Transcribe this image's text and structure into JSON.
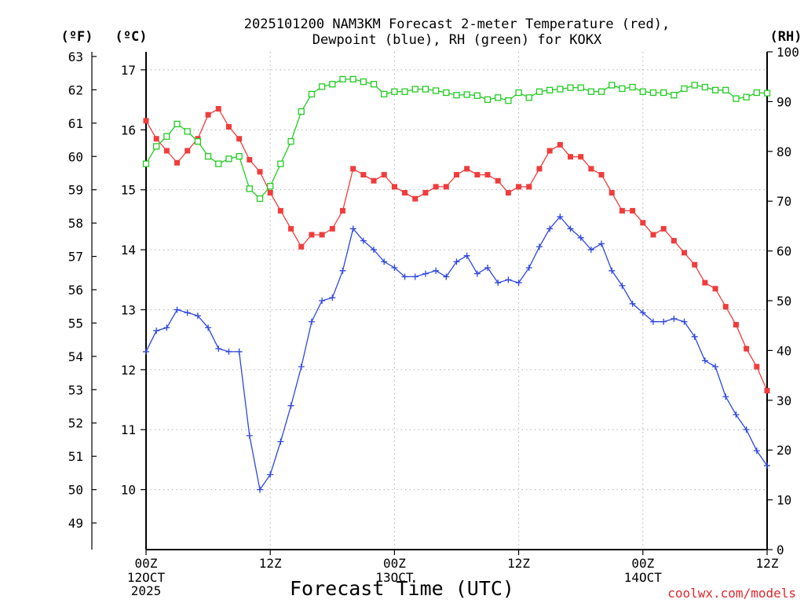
{
  "chart_data": {
    "type": "line",
    "title_lines": [
      "2025101200 NAM3KM Forecast 2-meter Temperature (red),",
      "Dewpoint (blue), RH (green) for KOKX"
    ],
    "xlabel": "Forecast Time (UTC)",
    "credit": "coolwx.com/models",
    "x_hours": [
      0,
      1,
      2,
      3,
      4,
      5,
      6,
      7,
      8,
      9,
      10,
      11,
      12,
      13,
      14,
      15,
      16,
      17,
      18,
      19,
      20,
      21,
      22,
      23,
      24,
      25,
      26,
      27,
      28,
      29,
      30,
      31,
      32,
      33,
      34,
      35,
      36,
      37,
      38,
      39,
      40,
      41,
      42,
      43,
      44,
      45,
      46,
      47,
      48,
      49,
      50,
      51,
      52,
      53,
      54,
      55,
      56,
      57,
      58,
      59,
      60
    ],
    "xlim": [
      0,
      60
    ],
    "x_ticks": [
      {
        "hour": 0,
        "label": "00Z",
        "sub": [
          "12OCT",
          "2025"
        ]
      },
      {
        "hour": 12,
        "label": "12Z",
        "sub": []
      },
      {
        "hour": 24,
        "label": "00Z",
        "sub": [
          "13OCT"
        ]
      },
      {
        "hour": 36,
        "label": "12Z",
        "sub": []
      },
      {
        "hour": 48,
        "label": "00Z",
        "sub": [
          "14OCT"
        ]
      },
      {
        "hour": 60,
        "label": "12Z",
        "sub": []
      }
    ],
    "y_celsius": {
      "label": "(ºC)",
      "lim": [
        9.0,
        17.3
      ],
      "ticks": [
        10,
        11,
        12,
        13,
        14,
        15,
        16,
        17
      ],
      "tick_labels": [
        "10",
        "11",
        "12",
        "13",
        "14",
        "15",
        "16",
        "17"
      ]
    },
    "y_fahrenheit": {
      "label": "(ºF)",
      "ticks": [
        49,
        50,
        51,
        52,
        53,
        54,
        55,
        56,
        57,
        58,
        59,
        60,
        61,
        62,
        63
      ],
      "tick_labels": [
        "49",
        "50",
        "51",
        "52",
        "53",
        "54",
        "55",
        "56",
        "57",
        "58",
        "59",
        "60",
        "61",
        "62",
        "63"
      ]
    },
    "y_rh": {
      "label": "(RH)",
      "lim": [
        0,
        100
      ],
      "ticks": [
        0,
        10,
        20,
        30,
        40,
        50,
        60,
        70,
        80,
        90,
        100
      ],
      "tick_labels": [
        "0",
        "10",
        "20",
        "30",
        "40",
        "50",
        "60",
        "70",
        "80",
        "90",
        "100"
      ]
    },
    "series": [
      {
        "name": "Temperature",
        "unit": "°C",
        "axis": "celsius",
        "color": "#f03c3c",
        "marker": "filled-square",
        "values": [
          16.15,
          15.85,
          15.65,
          15.45,
          15.65,
          15.85,
          16.25,
          16.35,
          16.05,
          15.85,
          15.5,
          15.3,
          14.95,
          14.65,
          14.35,
          14.05,
          14.25,
          14.25,
          14.35,
          14.65,
          15.35,
          15.25,
          15.15,
          15.25,
          15.05,
          14.95,
          14.85,
          14.95,
          15.05,
          15.05,
          15.25,
          15.35,
          15.25,
          15.25,
          15.15,
          14.95,
          15.05,
          15.05,
          15.35,
          15.65,
          15.75,
          15.55,
          15.55,
          15.35,
          15.25,
          14.95,
          14.65,
          14.65,
          14.45,
          14.25,
          14.35,
          14.15,
          13.95,
          13.75,
          13.45,
          13.35,
          13.05,
          12.75,
          12.35,
          12.05,
          11.65
        ]
      },
      {
        "name": "Dewpoint",
        "unit": "°C",
        "axis": "celsius",
        "color": "#2f47de",
        "marker": "plus",
        "values": [
          12.3,
          12.65,
          12.7,
          13.0,
          12.95,
          12.9,
          12.7,
          12.35,
          12.3,
          12.3,
          10.9,
          10.0,
          10.25,
          10.8,
          11.4,
          12.05,
          12.8,
          13.15,
          13.2,
          13.65,
          14.35,
          14.15,
          14.0,
          13.8,
          13.7,
          13.55,
          13.55,
          13.6,
          13.65,
          13.55,
          13.8,
          13.9,
          13.6,
          13.7,
          13.45,
          13.5,
          13.45,
          13.7,
          14.05,
          14.35,
          14.55,
          14.35,
          14.2,
          14.0,
          14.1,
          13.65,
          13.4,
          13.1,
          12.95,
          12.8,
          12.8,
          12.85,
          12.8,
          12.55,
          12.15,
          12.05,
          11.55,
          11.25,
          11.0,
          10.65,
          10.4
        ]
      },
      {
        "name": "RH",
        "unit": "%",
        "axis": "rh",
        "color": "#22cc22",
        "marker": "open-square",
        "values": [
          77.5,
          81,
          83,
          85.5,
          84,
          82,
          79,
          77.5,
          78.5,
          79,
          72.5,
          70.5,
          73,
          77.5,
          82,
          88,
          91.5,
          93,
          93.5,
          94.5,
          94.5,
          94,
          93.5,
          91.5,
          92,
          92,
          92.5,
          92.5,
          92.2,
          91.8,
          91.3,
          91.4,
          91.2,
          90.4,
          90.8,
          90.2,
          91.8,
          90.8,
          92,
          92.3,
          92.5,
          92.8,
          92.8,
          92,
          92,
          93.3,
          92.6,
          92.9,
          92,
          91.8,
          91.8,
          91.3,
          92.6,
          93.3,
          92.9,
          92.3,
          92.3,
          90.6,
          90.9,
          91.8,
          91.7
        ]
      }
    ]
  }
}
